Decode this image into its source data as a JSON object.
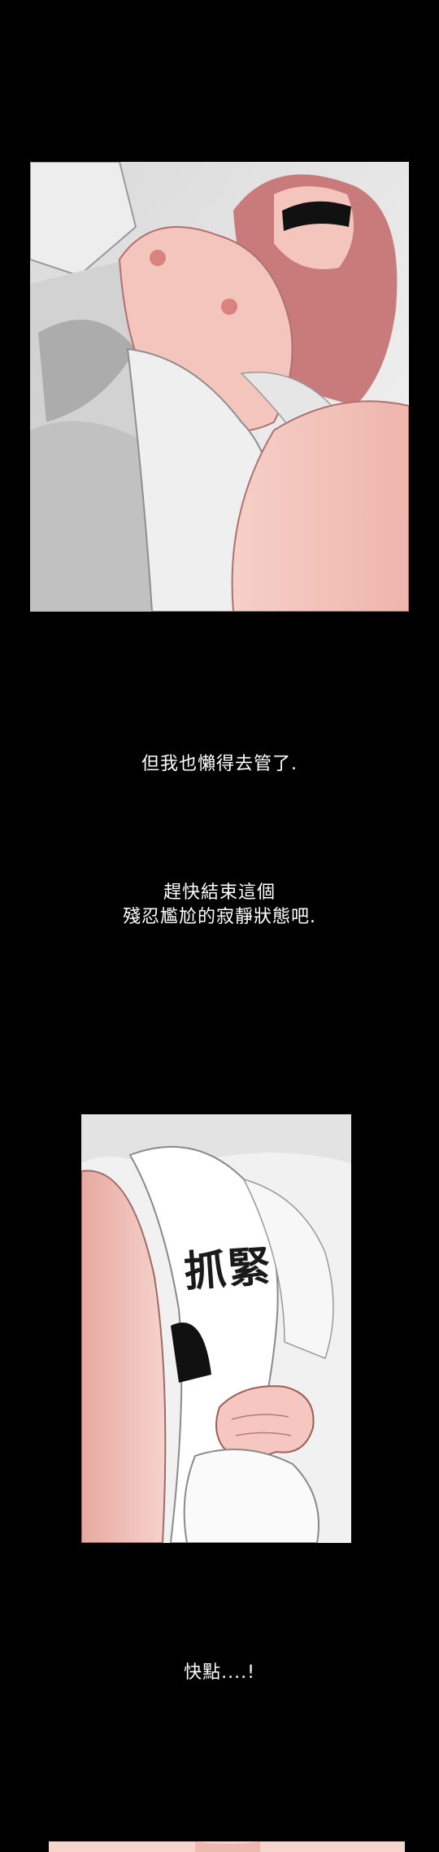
{
  "captions": {
    "line1": "但我也懶得去管了.",
    "line2a": "趕快結束這個",
    "line2b": "殘忍尷尬的寂靜狀態吧.",
    "line3": "快點....!"
  },
  "sfx": {
    "grab": "抓緊"
  },
  "colors": {
    "background": "#000000",
    "skin": "#f3c5bd",
    "hair": "#c97a7a",
    "fabric": "#ececec",
    "caption": "#ffffff"
  }
}
